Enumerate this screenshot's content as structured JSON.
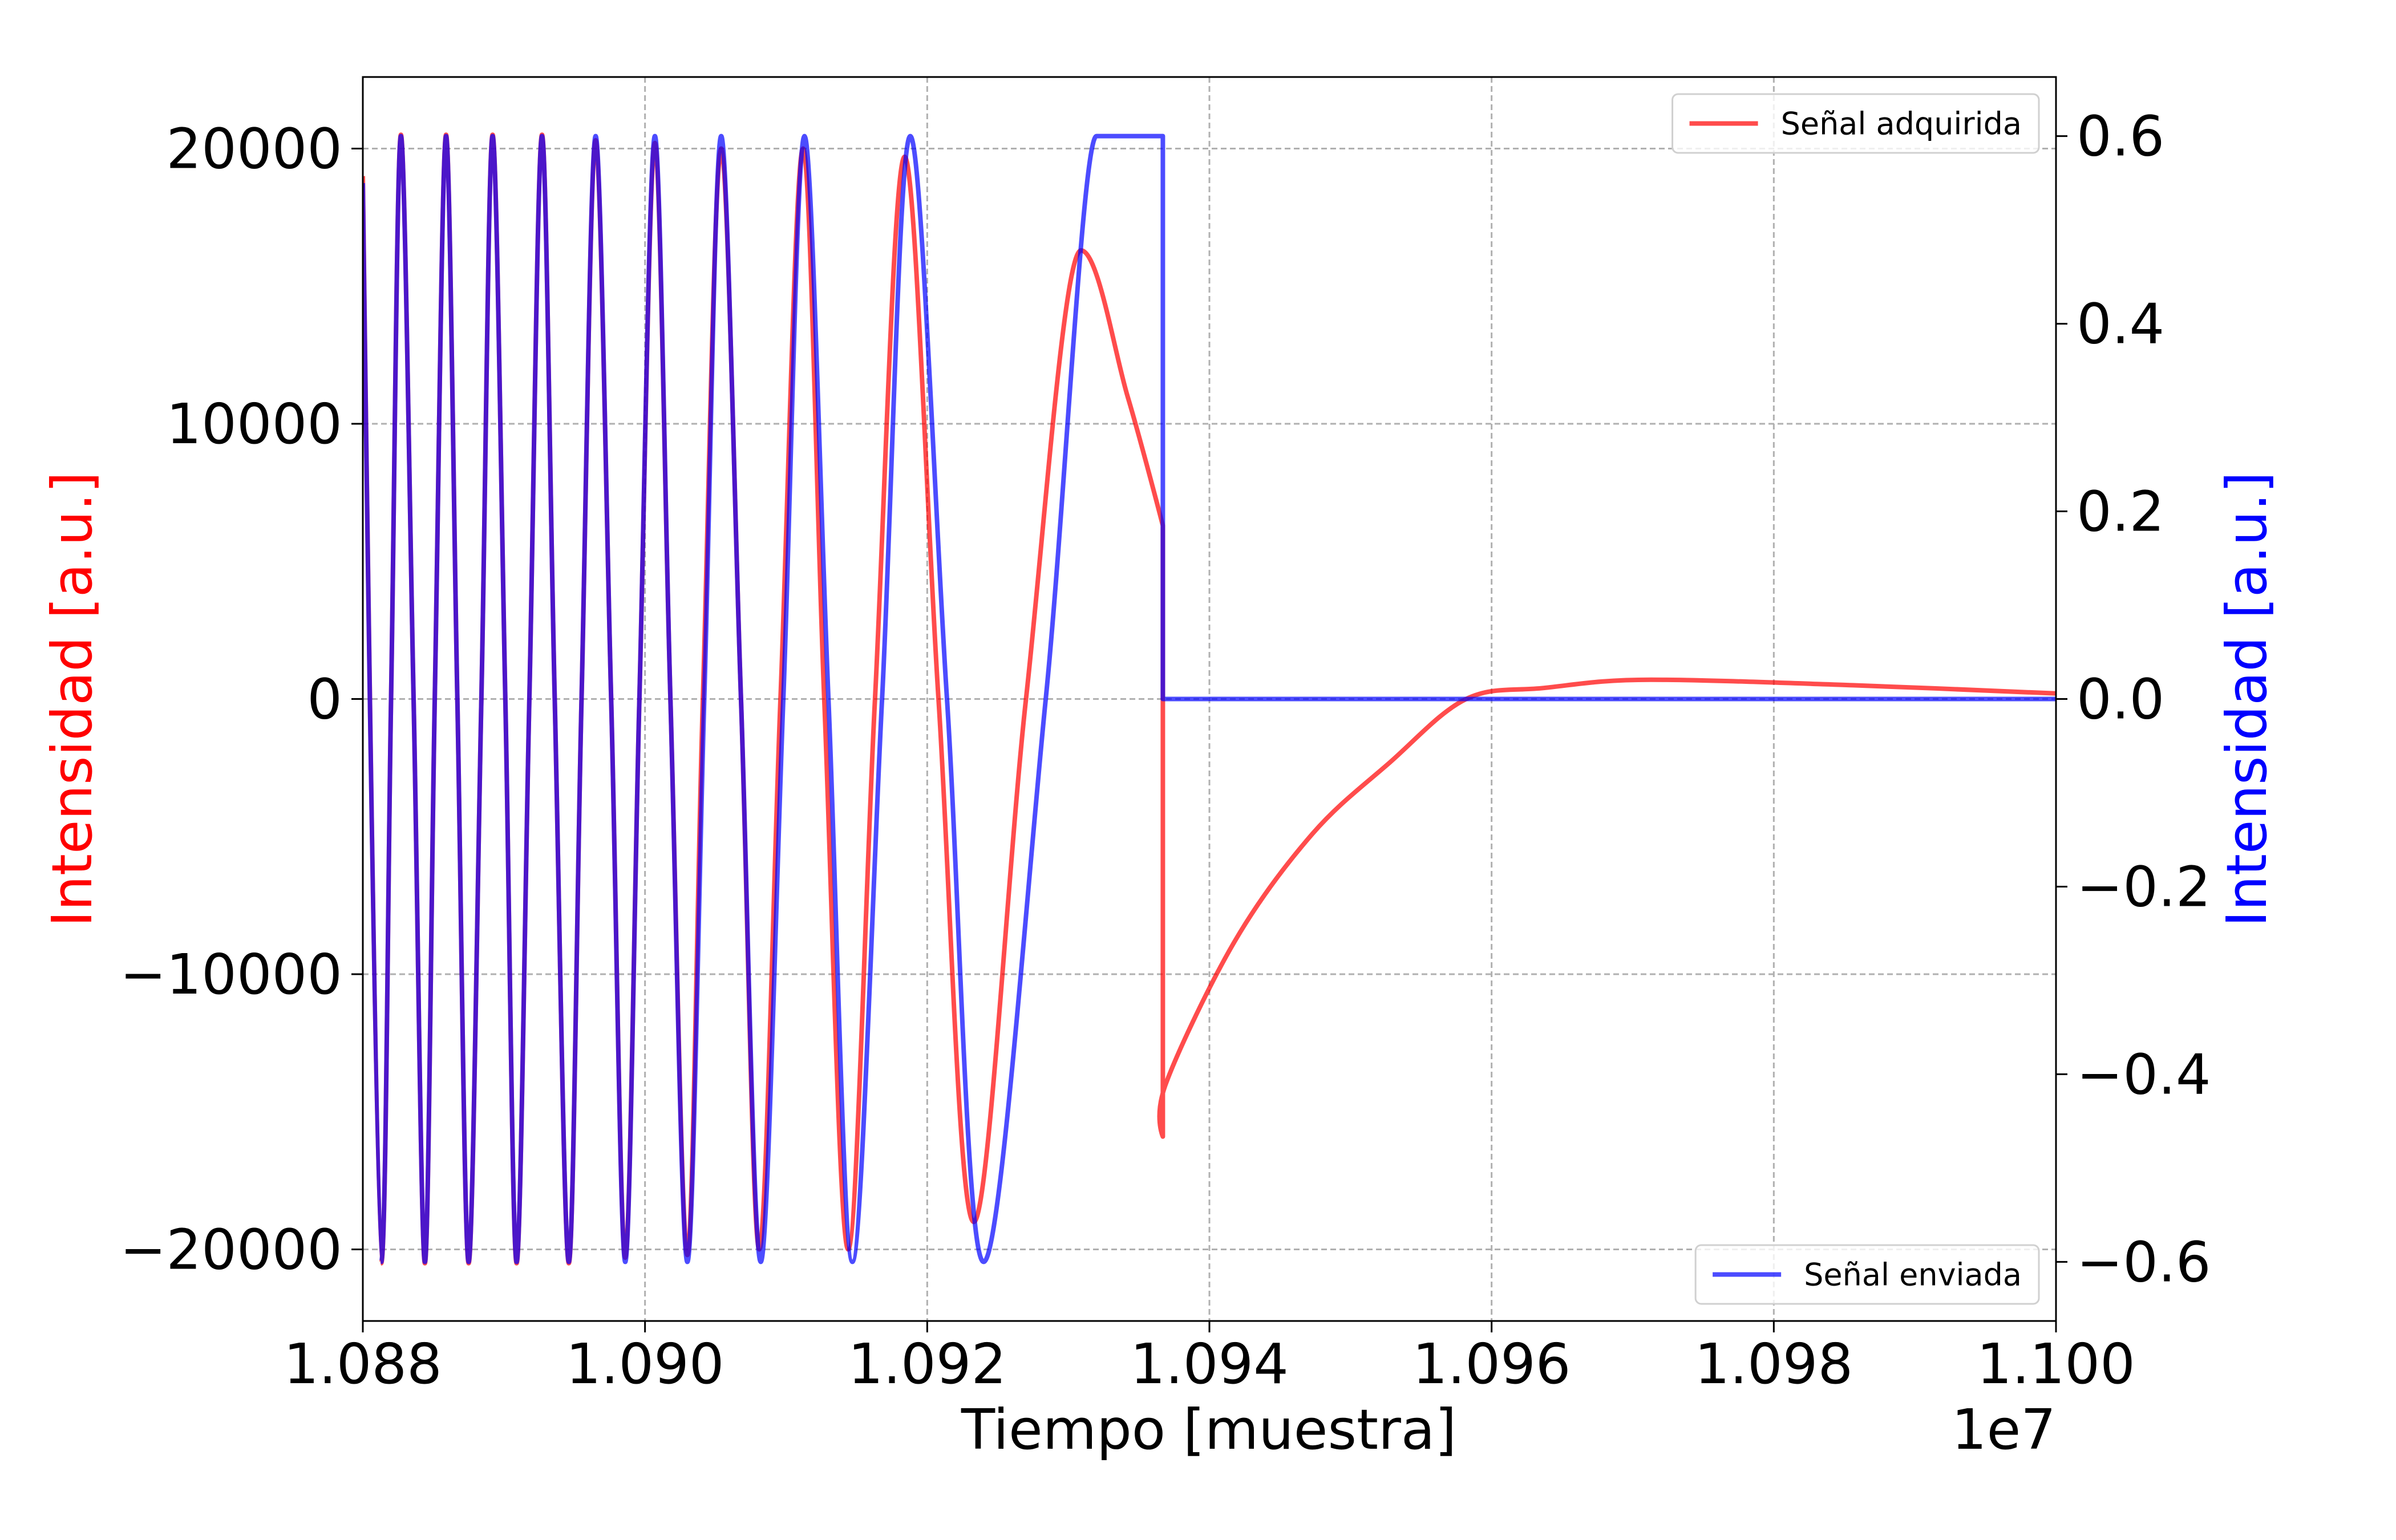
{
  "chart_data": {
    "type": "line",
    "xlabel": "Tiempo [muestra]",
    "ylabel": "Intensidad [a.u.]",
    "y2label": "Intensidad [a.u.]",
    "ylabel_color": "#ff0000",
    "y2label_color": "#0000ff",
    "x_offset_label": "1e7",
    "xlim": [
      10880000,
      11000000
    ],
    "xticks": [
      {
        "value": 10880000,
        "label": "1.088"
      },
      {
        "value": 10900000,
        "label": "1.090"
      },
      {
        "value": 10920000,
        "label": "1.092"
      },
      {
        "value": 10940000,
        "label": "1.094"
      },
      {
        "value": 10960000,
        "label": "1.096"
      },
      {
        "value": 10980000,
        "label": "1.098"
      },
      {
        "value": 11000000,
        "label": "1.100"
      }
    ],
    "ylim": [
      -22600,
      22600
    ],
    "yticks": [
      {
        "value": -20000,
        "label": "−20000"
      },
      {
        "value": -10000,
        "label": "−10000"
      },
      0,
      10000,
      20000
    ],
    "y2lim": [
      -0.663,
      0.663
    ],
    "y2ticks": [
      {
        "value": -0.6,
        "label": "−0.6"
      },
      {
        "value": -0.4,
        "label": "−0.4"
      },
      {
        "value": -0.2,
        "label": "−0.2"
      },
      {
        "value": 0,
        "label": "0.0"
      },
      0.2,
      0.4,
      0.6
    ],
    "grid": true,
    "series": [
      {
        "name": "Señal adquirida",
        "color": "#ff0000",
        "opacity": 0.7,
        "axis": "y",
        "legend_loc": "upper right",
        "x": [
          10880000,
          10881300,
          10882000,
          10882700,
          10883600,
          10884400,
          10885100,
          10885900,
          10886700,
          10887500,
          10888400,
          10889200,
          10890100,
          10890900,
          10891800,
          10892700,
          10893600,
          10894600,
          10895500,
          10896500,
          10897600,
          10898600,
          10899600,
          10900700,
          10901800,
          10903000,
          10904100,
          10905400,
          10906800,
          10908100,
          10909600,
          10911200,
          10912700,
          10914400,
          10916300,
          10918400,
          10920800,
          10923300,
          10927000,
          10930900,
          10934200,
          10936700,
          10936700,
          10936900,
          10941800,
          10947300,
          10952800,
          10958200,
          10963700,
          10971300,
          10985600,
          11000000
        ],
        "values": [
          19000,
          -20500,
          0,
          20500,
          0,
          -20500,
          0,
          20500,
          0,
          -20500,
          0,
          20500,
          0,
          -20500,
          0,
          20500,
          0,
          -20500,
          0,
          20300,
          0,
          -20300,
          0,
          20200,
          0,
          -20200,
          0,
          20000,
          0,
          -20000,
          0,
          20000,
          0,
          -20000,
          0,
          19700,
          0,
          -19000,
          0,
          16300,
          11000,
          6300,
          -15900,
          -14000,
          -8800,
          -4900,
          -2300,
          0,
          400,
          700,
          500,
          200
        ]
      },
      {
        "name": "Señal enviada",
        "color": "#0000ff",
        "opacity": 0.7,
        "axis": "y2",
        "legend_loc": "lower right",
        "x": [
          10880000,
          10881300,
          10882000,
          10882700,
          10883600,
          10884400,
          10885100,
          10885900,
          10886700,
          10887500,
          10888400,
          10889200,
          10890100,
          10890900,
          10891800,
          10892700,
          10893600,
          10894600,
          10895500,
          10896500,
          10897600,
          10898600,
          10899600,
          10900700,
          10901800,
          10903000,
          10904200,
          10905400,
          10906800,
          10908200,
          10909800,
          10911300,
          10913000,
          10914700,
          10916800,
          10918800,
          10921400,
          10924000,
          10928400,
          10932000,
          10934200,
          10936700,
          10936700,
          11000000
        ],
        "values": [
          0.55,
          -0.6,
          0,
          0.6,
          0,
          -0.6,
          0,
          0.6,
          0,
          -0.6,
          0,
          0.6,
          0,
          -0.6,
          0,
          0.6,
          0,
          -0.6,
          0,
          0.6,
          0,
          -0.6,
          0,
          0.6,
          0,
          -0.6,
          0,
          0.6,
          0,
          -0.6,
          0,
          0.6,
          0,
          -0.6,
          0,
          0.6,
          0,
          -0.6,
          0,
          0.6,
          0.6,
          0.6,
          0,
          0
        ]
      }
    ]
  }
}
